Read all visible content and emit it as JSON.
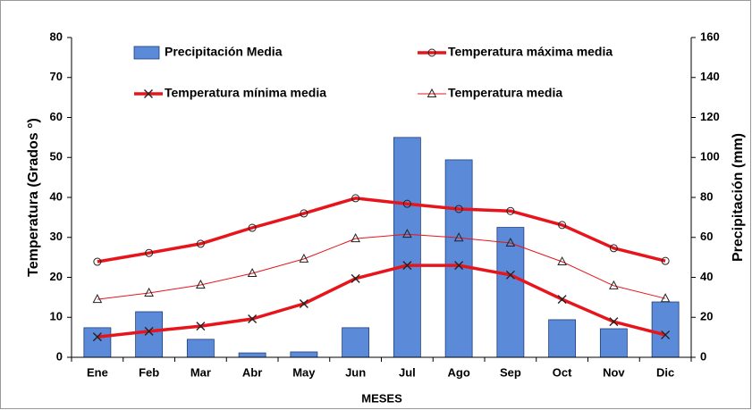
{
  "chart_data": {
    "type": "combo",
    "x_label": "MESES",
    "y_label": "Temperatura (Grados °)",
    "y2_label": "Precipitación (mm)",
    "categories": [
      "Ene",
      "Feb",
      "Mar",
      "Abr",
      "May",
      "Jun",
      "Jul",
      "Ago",
      "Sep",
      "Oct",
      "Nov",
      "Dic"
    ],
    "ylim": [
      0,
      80
    ],
    "yticks": [
      0,
      10,
      20,
      30,
      40,
      50,
      60,
      70,
      80
    ],
    "y2lim": [
      0,
      160
    ],
    "y2ticks": [
      0,
      20,
      40,
      60,
      80,
      100,
      120,
      140,
      160
    ],
    "series": [
      {
        "name": "Precipitación Media",
        "type": "bar",
        "axis": "y2",
        "color": "#5b8ad8",
        "values": [
          14.8,
          22.8,
          9,
          2.2,
          2.7,
          14.8,
          110,
          98.8,
          65,
          18.8,
          14.3,
          27.7
        ]
      },
      {
        "name": "Temperatura máxima media",
        "type": "line",
        "marker": "circle",
        "line_width": 3.5,
        "color": "#e8141b",
        "values": [
          23.9,
          26.1,
          28.4,
          32.4,
          36,
          39.8,
          38.4,
          37.1,
          36.6,
          33.1,
          27.3,
          24.1
        ]
      },
      {
        "name": "Temperatura mínima media",
        "type": "line",
        "marker": "x",
        "line_width": 3.5,
        "color": "#e8141b",
        "values": [
          5.1,
          6.5,
          7.8,
          9.6,
          13.4,
          19.7,
          23,
          23,
          20.6,
          14.5,
          8.9,
          5.6
        ]
      },
      {
        "name": "Temperatura media",
        "type": "line",
        "marker": "triangle",
        "line_width": 1,
        "color": "#e8141b",
        "values": [
          14.5,
          16.1,
          18.1,
          21,
          24.6,
          29.7,
          30.8,
          29.9,
          28.6,
          23.9,
          17.9,
          14.7
        ]
      }
    ]
  }
}
